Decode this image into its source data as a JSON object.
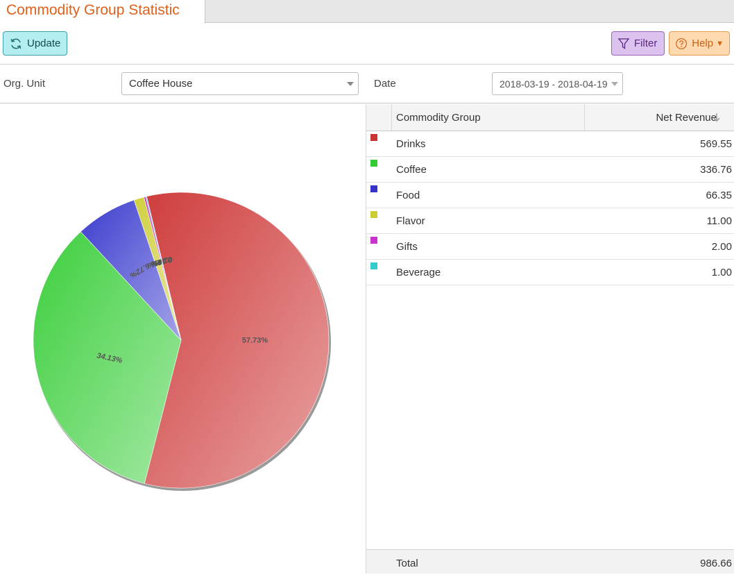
{
  "tab": {
    "title": "Commodity Group Statistic"
  },
  "toolbar": {
    "update_label": "Update",
    "filter_label": "Filter",
    "help_label": "Help"
  },
  "filters": {
    "org_unit_label": "Org. Unit",
    "org_unit_value": "Coffee House",
    "date_label": "Date",
    "date_value": "2018-03-19 - 2018-04-19"
  },
  "table": {
    "columns": [
      "Commodity Group",
      "Net Revenue"
    ],
    "rows": [
      {
        "name": "Drinks",
        "value": "569.55",
        "color": "#cc3333"
      },
      {
        "name": "Coffee",
        "value": "336.76",
        "color": "#33cc33"
      },
      {
        "name": "Food",
        "value": "66.35",
        "color": "#3333cc"
      },
      {
        "name": "Flavor",
        "value": "11.00",
        "color": "#cccc33"
      },
      {
        "name": "Gifts",
        "value": "2.00",
        "color": "#cc33cc"
      },
      {
        "name": "Beverage",
        "value": "1.00",
        "color": "#33cccc"
      }
    ],
    "total_label": "Total",
    "total_value": "986.66"
  },
  "chart_data": {
    "type": "pie",
    "categories": [
      "Drinks",
      "Coffee",
      "Food",
      "Flavor",
      "Gifts",
      "Beverage"
    ],
    "values": [
      569.55,
      336.76,
      66.35,
      11.0,
      2.0,
      1.0
    ],
    "labels": [
      "57.73%",
      "34.13%",
      "6.72%",
      "1.11%",
      "0.20%",
      "0.10%"
    ],
    "colors": [
      "#cc3333",
      "#33cc33",
      "#3333cc",
      "#cccc33",
      "#cc33cc",
      "#33cccc"
    ]
  }
}
